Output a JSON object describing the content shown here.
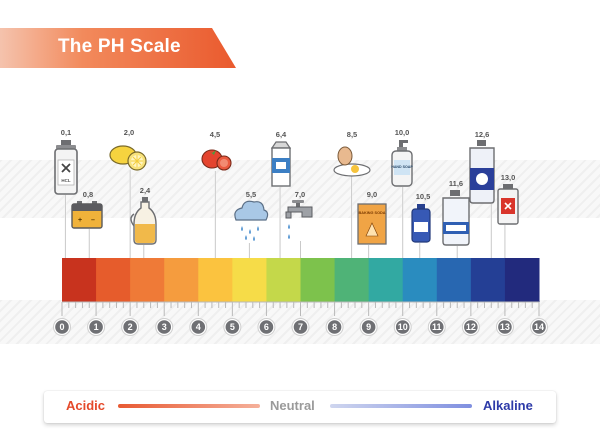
{
  "title": "The PH Scale",
  "legend": {
    "acidic": "Acidic",
    "neutral": "Neutral",
    "alkaline": "Alkaline"
  },
  "scale": {
    "min": 0,
    "max": 14,
    "numbers": [
      "0",
      "1",
      "2",
      "3",
      "4",
      "5",
      "6",
      "7",
      "8",
      "9",
      "10",
      "11",
      "12",
      "13",
      "14"
    ],
    "colors": [
      "#c8331e",
      "#e65c2c",
      "#ef7a37",
      "#f59c3e",
      "#fbc33f",
      "#f6dc48",
      "#c4d84a",
      "#7dc24c",
      "#4fb377",
      "#32a9a2",
      "#2a8cbf",
      "#2867b1",
      "#243f95",
      "#222a7d"
    ]
  },
  "items": [
    {
      "name": "hcl-bottle",
      "value": 0.1,
      "label": "0,1",
      "icon": "hcl-bottle-icon"
    },
    {
      "name": "car-battery",
      "value": 0.8,
      "label": "0,8",
      "icon": "car-battery-icon"
    },
    {
      "name": "lemon",
      "value": 2.0,
      "label": "2,0",
      "icon": "lemon-icon"
    },
    {
      "name": "vinegar",
      "value": 2.4,
      "label": "2,4",
      "icon": "vinegar-jug-icon"
    },
    {
      "name": "tomato",
      "value": 4.5,
      "label": "4,5",
      "icon": "tomato-icon"
    },
    {
      "name": "rain",
      "value": 5.5,
      "label": "5,5",
      "icon": "rain-cloud-icon"
    },
    {
      "name": "milk",
      "value": 6.4,
      "label": "6,4",
      "icon": "milk-carton-icon"
    },
    {
      "name": "tap-water",
      "value": 7.0,
      "label": "7,0",
      "icon": "water-tap-icon"
    },
    {
      "name": "egg",
      "value": 8.5,
      "label": "8,5",
      "icon": "egg-icon"
    },
    {
      "name": "baking-soda",
      "value": 9.0,
      "label": "9,0",
      "icon": "baking-soda-box-icon",
      "text": "BAKING SODA"
    },
    {
      "name": "hand-soap",
      "value": 10.0,
      "label": "10,0",
      "icon": "hand-soap-icon",
      "text": "HAND SOAP"
    },
    {
      "name": "small-bottle",
      "value": 10.5,
      "label": "10,5",
      "icon": "small-bottle-icon"
    },
    {
      "name": "ammonia",
      "value": 11.6,
      "label": "11,6",
      "icon": "ammonia-jug-icon"
    },
    {
      "name": "bleach",
      "value": 12.6,
      "label": "12,6",
      "icon": "bleach-jug-icon"
    },
    {
      "name": "drain-cleaner",
      "value": 13.0,
      "label": "13,0",
      "icon": "drain-cleaner-icon"
    }
  ]
}
